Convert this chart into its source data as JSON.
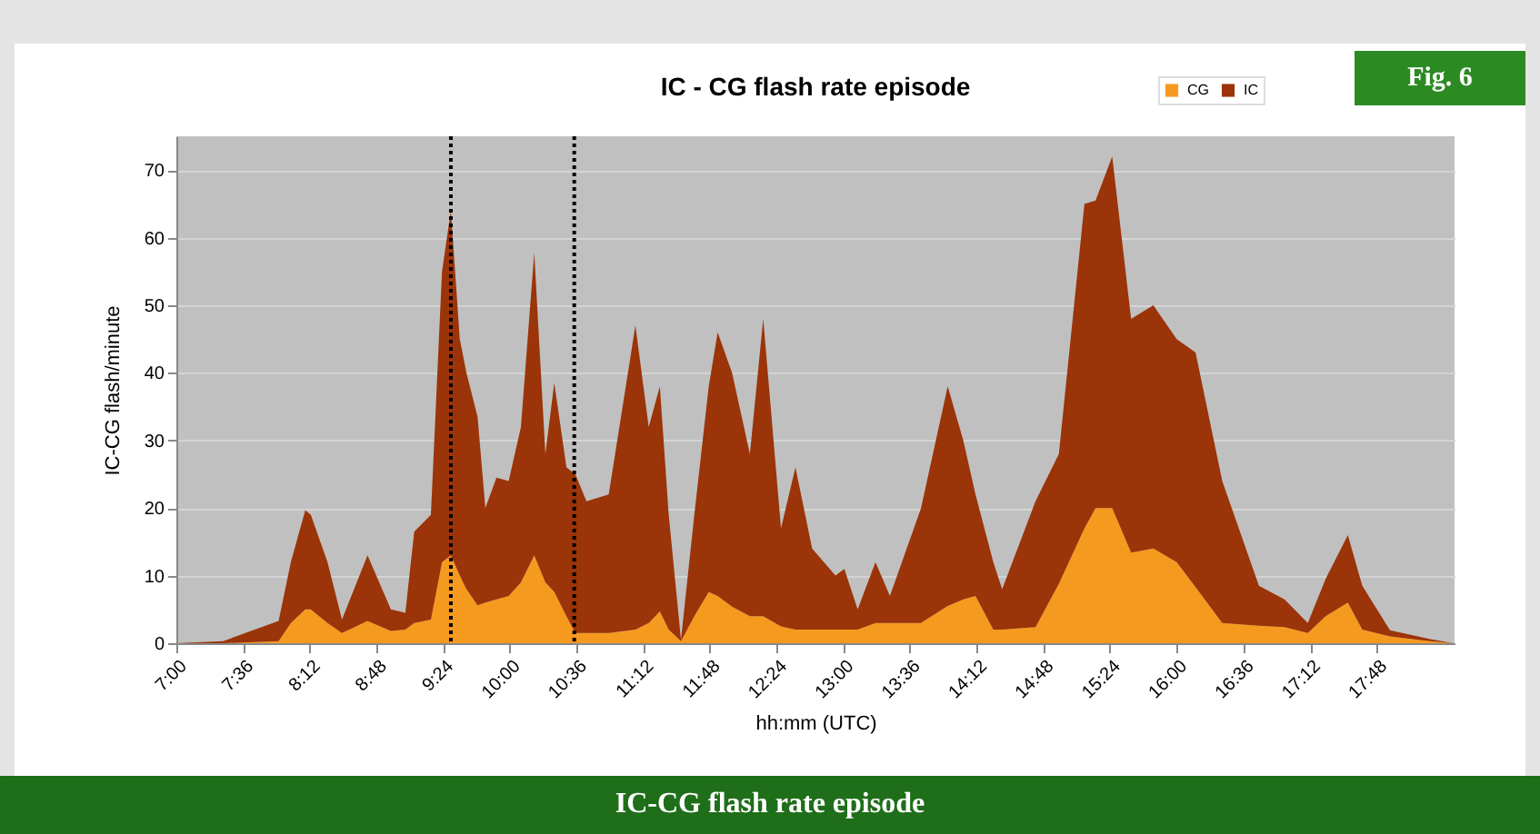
{
  "chart_data": {
    "type": "area",
    "stacked": true,
    "title": "IC - CG flash rate episode",
    "xlabel": "hh:mm (UTC)",
    "ylabel": "IC-CG flash/minute",
    "annotations": [
      "Fig. 6",
      "IC-CG flash rate episode"
    ],
    "x": [
      7.0,
      7.42,
      7.92,
      8.03,
      8.16,
      8.21,
      8.36,
      8.49,
      8.72,
      8.93,
      9.06,
      9.14,
      9.29,
      9.39,
      9.47,
      9.55,
      9.61,
      9.71,
      9.78,
      9.88,
      9.99,
      10.1,
      10.22,
      10.32,
      10.4,
      10.51,
      10.59,
      10.69,
      10.89,
      11.13,
      11.25,
      11.35,
      11.43,
      11.54,
      11.66,
      11.79,
      11.87,
      12.0,
      12.16,
      12.28,
      12.44,
      12.57,
      12.72,
      12.93,
      13.01,
      13.13,
      13.29,
      13.42,
      13.7,
      13.94,
      14.08,
      14.19,
      14.35,
      14.43,
      14.73,
      14.94,
      15.17,
      15.27,
      15.42,
      15.59,
      15.79,
      16.0,
      16.17,
      16.41,
      16.74,
      16.97,
      17.18,
      17.34,
      17.54,
      17.67,
      17.92,
      18.28,
      18.49
    ],
    "series": [
      {
        "name": "CG",
        "color": "#f59a1f",
        "values": [
          0,
          0,
          0.3,
          3,
          5,
          5,
          3,
          1.5,
          3.3,
          1.8,
          2,
          3,
          3.5,
          12,
          13,
          10,
          8,
          5.6,
          6,
          6.5,
          7,
          9,
          13,
          9,
          7.6,
          4,
          1.5,
          1.5,
          1.5,
          2,
          3,
          4.7,
          2,
          0.3,
          4,
          7.6,
          7,
          5.4,
          4,
          4,
          2.5,
          2,
          2,
          2,
          2,
          2,
          3,
          3,
          3,
          5.5,
          6.5,
          7,
          2,
          2,
          2.4,
          8.8,
          17,
          20,
          20,
          13.4,
          14,
          12,
          8.3,
          3,
          2.6,
          2.4,
          1.5,
          4,
          6,
          2,
          1,
          0.3,
          0
        ]
      },
      {
        "name": "IC",
        "color": "#9b3408",
        "values": [
          0,
          0.3,
          3,
          9,
          14.7,
          14,
          9,
          2,
          9.7,
          3.2,
          2.5,
          13.5,
          15.5,
          43,
          51,
          35,
          32,
          27.9,
          14,
          18,
          17,
          23,
          44.8,
          19,
          30.9,
          22,
          23.5,
          19.5,
          20.5,
          45,
          29,
          33.3,
          17,
          0.2,
          15,
          30.4,
          39,
          34.6,
          24,
          44,
          14.5,
          24,
          12,
          8,
          9,
          3,
          9,
          4,
          17,
          32.5,
          23.5,
          15,
          10,
          6,
          18.6,
          19.2,
          48,
          45.5,
          52,
          34.6,
          36,
          33,
          34.7,
          21,
          5.9,
          4.1,
          1.5,
          5.5,
          10,
          6.5,
          0.9,
          0.3,
          0
        ]
      }
    ],
    "xlim": [
      7,
      18.5
    ],
    "xticks": [
      {
        "value": 7,
        "label": "7:00"
      },
      {
        "value": 7.6,
        "label": "7:36"
      },
      {
        "value": 8.2,
        "label": "8:12"
      },
      {
        "value": 8.8,
        "label": "8:48"
      },
      {
        "value": 9.4,
        "label": "9:24"
      },
      {
        "value": 10,
        "label": "10:00"
      },
      {
        "value": 10.6,
        "label": "10:36"
      },
      {
        "value": 11.2,
        "label": "11:12"
      },
      {
        "value": 11.8,
        "label": "11:48"
      },
      {
        "value": 12.4,
        "label": "12:24"
      },
      {
        "value": 13,
        "label": "13:00"
      },
      {
        "value": 13.6,
        "label": "13:36"
      },
      {
        "value": 14.2,
        "label": "14:12"
      },
      {
        "value": 14.8,
        "label": "14:48"
      },
      {
        "value": 15.4,
        "label": "15:24"
      },
      {
        "value": 16,
        "label": "16:00"
      },
      {
        "value": 16.6,
        "label": "16:36"
      },
      {
        "value": 17.2,
        "label": "17:12"
      },
      {
        "value": 17.8,
        "label": "17:48"
      }
    ],
    "ylim": [
      0,
      75
    ],
    "yticks": [
      0,
      10,
      20,
      30,
      40,
      50,
      60,
      70
    ],
    "grid": "y",
    "legend": "top right",
    "ref_lines": [
      {
        "axis": "x",
        "value": 9.47,
        "color": "#000000",
        "line_style": "dotted"
      },
      {
        "axis": "x",
        "value": 10.58,
        "color": "#000000",
        "line_style": "dotted"
      }
    ]
  }
}
